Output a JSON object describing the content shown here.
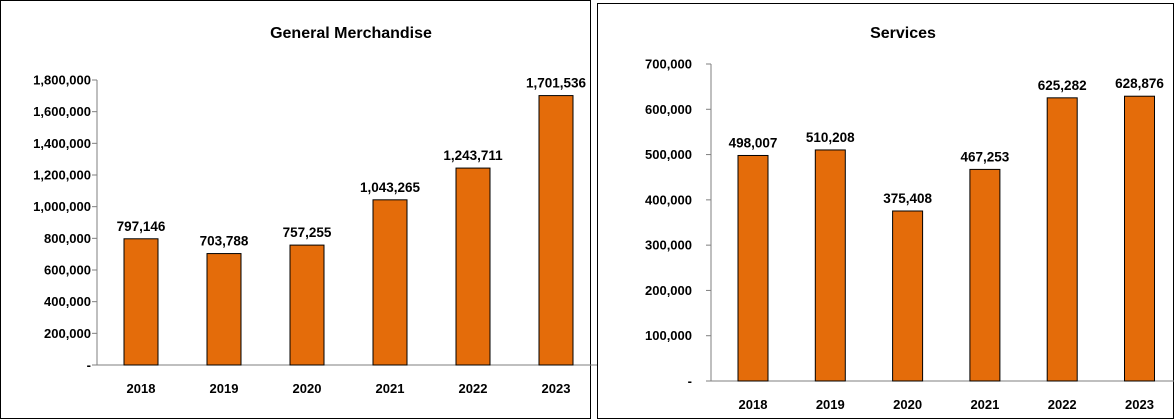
{
  "chart_data": [
    {
      "type": "bar",
      "title": "General Merchandise",
      "categories": [
        "2018",
        "2019",
        "2020",
        "2021",
        "2022",
        "2023"
      ],
      "values": [
        797146,
        703788,
        757255,
        1043265,
        1243711,
        1701536
      ],
      "value_labels": [
        "797,146",
        "703,788",
        "757,255",
        "1,043,265",
        "1,243,711",
        "1,701,536"
      ],
      "ylim": [
        0,
        1800000
      ],
      "yticks": [
        0,
        200000,
        400000,
        600000,
        800000,
        1000000,
        1200000,
        1400000,
        1600000,
        1800000
      ],
      "ytick_labels": [
        "-",
        "200,000",
        "400,000",
        "600,000",
        "800,000",
        "1,000,000",
        "1,200,000",
        "1,400,000",
        "1,600,000",
        "1,800,000"
      ],
      "grid": false,
      "legend": "none",
      "bar_color": "#E46C0A",
      "bar_edge": "#000000"
    },
    {
      "type": "bar",
      "title": "Services",
      "categories": [
        "2018",
        "2019",
        "2020",
        "2021",
        "2022",
        "2023"
      ],
      "values": [
        498007,
        510208,
        375408,
        467253,
        625282,
        628876
      ],
      "value_labels": [
        "498,007",
        "510,208",
        "375,408",
        "467,253",
        "625,282",
        "628,876"
      ],
      "ylim": [
        0,
        700000
      ],
      "yticks": [
        0,
        100000,
        200000,
        300000,
        400000,
        500000,
        600000,
        700000
      ],
      "ytick_labels": [
        "-",
        "100,000",
        "200,000",
        "300,000",
        "400,000",
        "500,000",
        "600,000",
        "700,000"
      ],
      "grid": false,
      "legend": "none",
      "bar_color": "#E46C0A",
      "bar_edge": "#000000"
    }
  ]
}
